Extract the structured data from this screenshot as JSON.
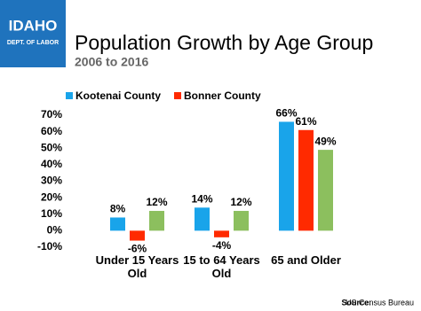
{
  "logo": {
    "line1": "IDAHO",
    "line2": "DEPT. OF LABOR"
  },
  "source_label": "Source:",
  "source": "US Census Bureau",
  "chart_data": {
    "type": "bar",
    "title": "Population Growth by Age Group",
    "subtitle": "2006 to 2016",
    "categories": [
      "Under 15 Years Old",
      "15 to 64 Years Old",
      "65 and Older"
    ],
    "series": [
      {
        "name": "Kootenai County",
        "color": "#19a4ea",
        "values": [
          8,
          14,
          66
        ],
        "value_labels": [
          "8%",
          "14%",
          "66%"
        ]
      },
      {
        "name": "Bonner County",
        "color": "#ff2a00",
        "values": [
          -6,
          -4,
          61
        ],
        "value_labels": [
          "-6%",
          "-4%",
          "61%"
        ]
      },
      {
        "color": "#8cbf5e",
        "values": [
          12,
          12,
          49
        ],
        "value_labels": [
          "12%",
          "12%",
          "49%"
        ]
      }
    ],
    "ylim": [
      -10,
      70
    ],
    "yticks": [
      {
        "value": -10,
        "label": "-10%"
      },
      {
        "value": 0,
        "label": "0%"
      },
      {
        "value": 10,
        "label": "10%"
      },
      {
        "value": 20,
        "label": "20%"
      },
      {
        "value": 30,
        "label": "30%"
      },
      {
        "value": 40,
        "label": "40%"
      },
      {
        "value": 50,
        "label": "50%"
      },
      {
        "value": 60,
        "label": "60%"
      },
      {
        "value": 70,
        "label": "70%"
      }
    ],
    "grid": false,
    "legend": "top-left"
  }
}
